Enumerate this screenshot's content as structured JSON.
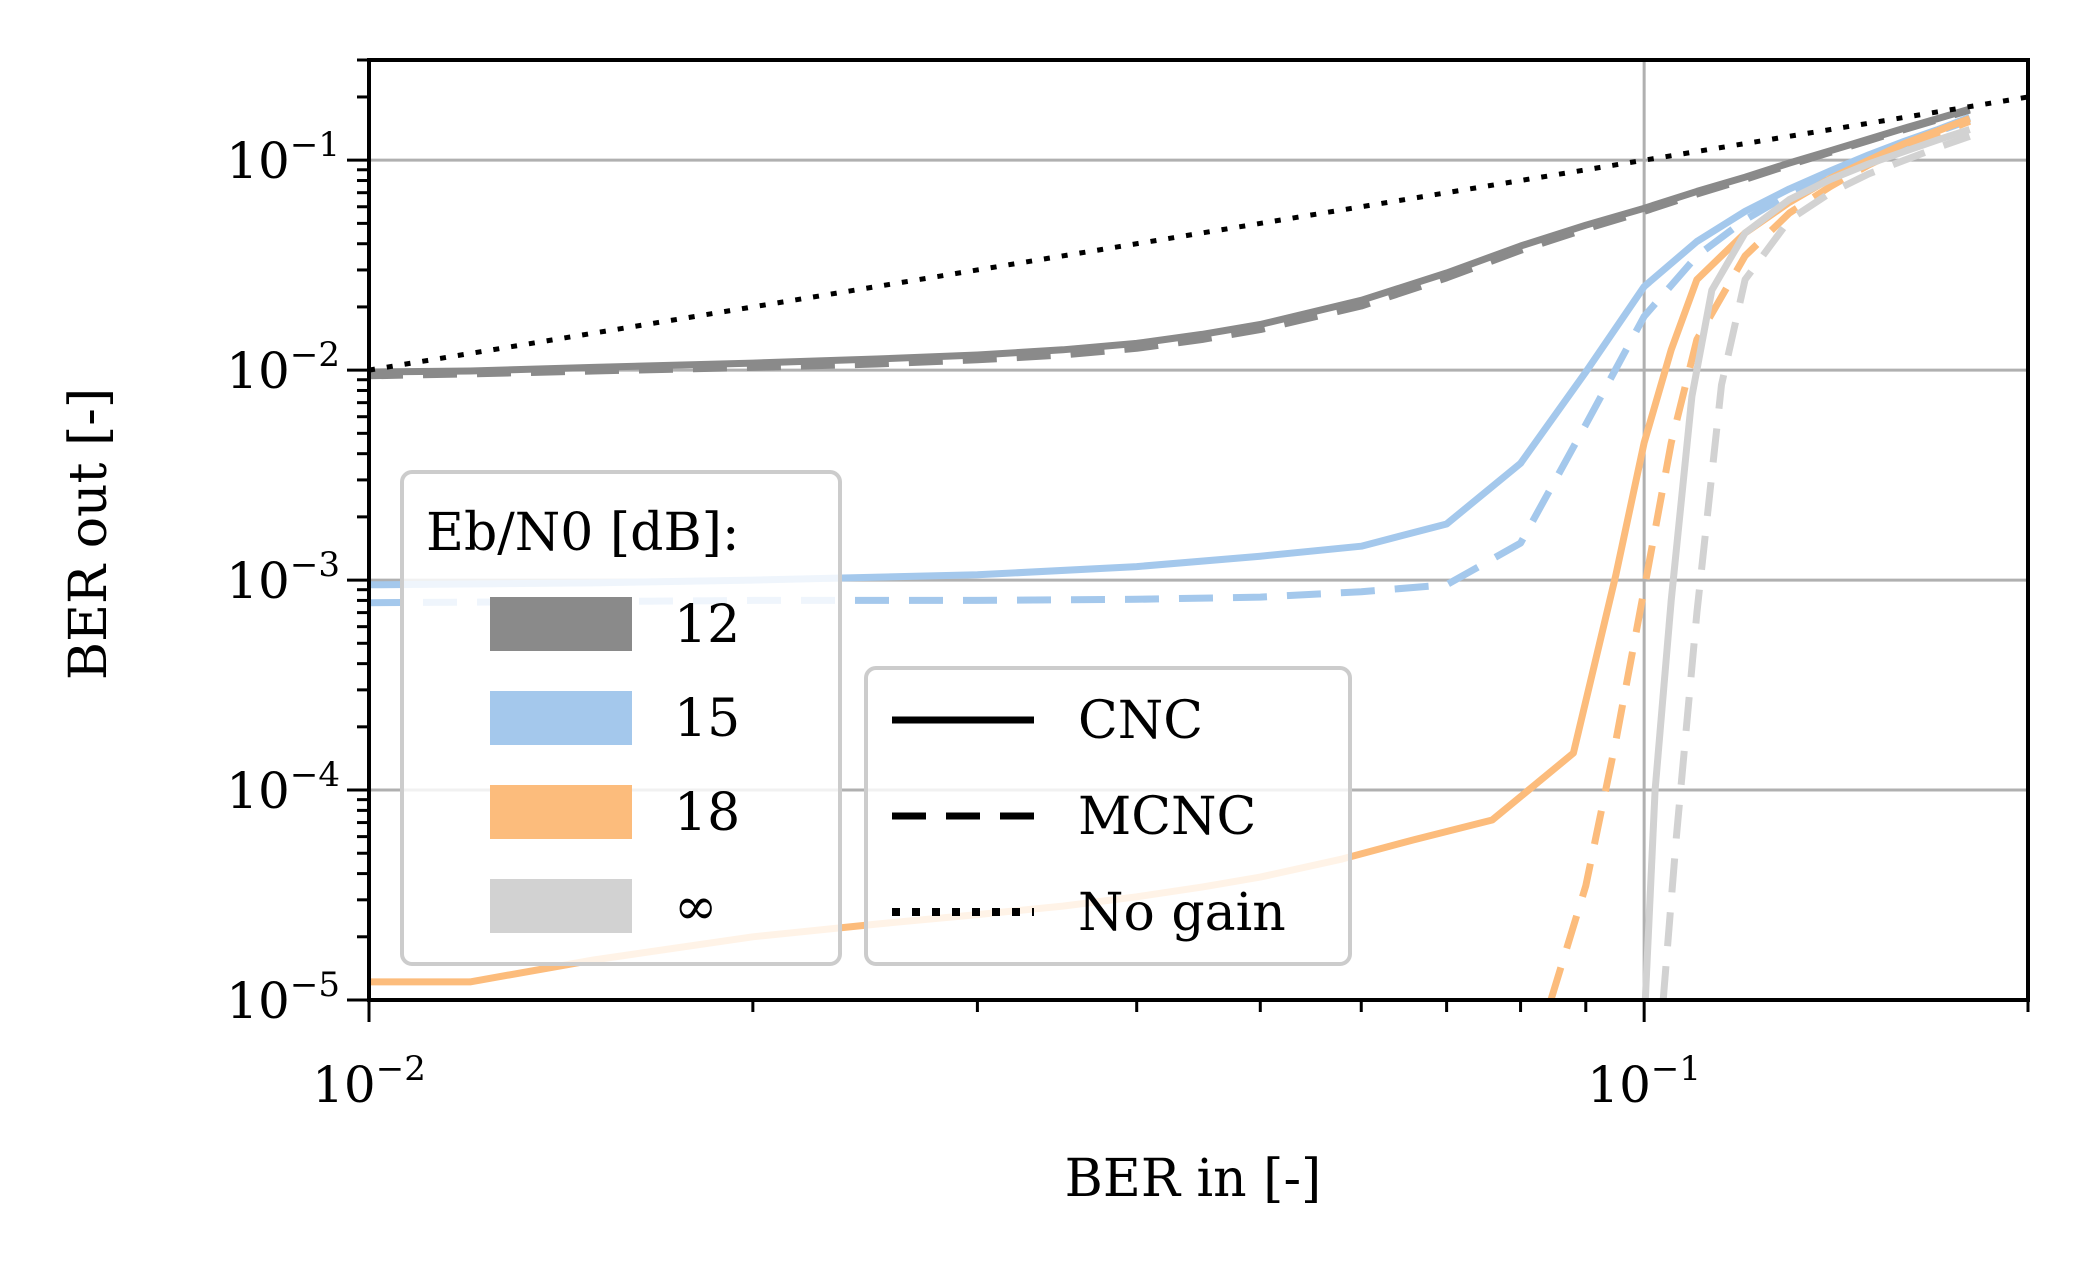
{
  "chart_data": {
    "type": "line",
    "xlabel": "BER in [-]",
    "ylabel": "BER out [-]",
    "xscale": "log",
    "yscale": "log",
    "xlim": [
      0.01,
      0.2
    ],
    "ylim": [
      1e-05,
      0.3
    ],
    "grid": true,
    "x_ticks": [
      {
        "value": 0.01,
        "base": "10",
        "exp": "−2"
      },
      {
        "value": 0.1,
        "base": "10",
        "exp": "−1"
      }
    ],
    "y_ticks": [
      {
        "value": 1e-05,
        "base": "10",
        "exp": "−5"
      },
      {
        "value": 0.0001,
        "base": "10",
        "exp": "−4"
      },
      {
        "value": 0.001,
        "base": "10",
        "exp": "−3"
      },
      {
        "value": 0.01,
        "base": "10",
        "exp": "−2"
      },
      {
        "value": 0.1,
        "base": "10",
        "exp": "−1"
      }
    ],
    "colors": {
      "12": "#8a8a8a",
      "15": "#a4c8ec",
      "18": "#fcbc7c",
      "inf": "#d2d2d2",
      "nogain": "#000000"
    },
    "series": [
      {
        "ebn0": "12",
        "code": "CNC",
        "style": "solid",
        "x": [
          0.01,
          0.012,
          0.015,
          0.02,
          0.025,
          0.03,
          0.035,
          0.04,
          0.045,
          0.05,
          0.06,
          0.07,
          0.08,
          0.09,
          0.1,
          0.11,
          0.12,
          0.13,
          0.14,
          0.15,
          0.16,
          0.17,
          0.18
        ],
        "y": [
          0.0098,
          0.0099,
          0.0103,
          0.0108,
          0.0113,
          0.0118,
          0.0125,
          0.0134,
          0.0148,
          0.0165,
          0.0215,
          0.029,
          0.039,
          0.049,
          0.059,
          0.071,
          0.083,
          0.097,
          0.111,
          0.126,
          0.142,
          0.158,
          0.175
        ]
      },
      {
        "ebn0": "12",
        "code": "MCNC",
        "style": "dashed",
        "x": [
          0.01,
          0.012,
          0.015,
          0.02,
          0.025,
          0.03,
          0.035,
          0.04,
          0.045,
          0.05,
          0.06,
          0.07,
          0.08,
          0.09,
          0.1,
          0.11,
          0.12,
          0.13,
          0.14,
          0.15,
          0.16,
          0.17,
          0.18
        ],
        "y": [
          0.0094,
          0.0096,
          0.0099,
          0.0103,
          0.0107,
          0.0112,
          0.0118,
          0.0127,
          0.014,
          0.0156,
          0.0202,
          0.0275,
          0.0372,
          0.047,
          0.057,
          0.069,
          0.081,
          0.095,
          0.109,
          0.124,
          0.14,
          0.156,
          0.173
        ]
      },
      {
        "ebn0": "15",
        "code": "CNC",
        "style": "solid",
        "x": [
          0.01,
          0.015,
          0.02,
          0.03,
          0.04,
          0.05,
          0.06,
          0.07,
          0.08,
          0.09,
          0.1,
          0.11,
          0.12,
          0.13,
          0.14,
          0.15,
          0.16,
          0.17,
          0.18
        ],
        "y": [
          0.00095,
          0.00097,
          0.001,
          0.00106,
          0.00116,
          0.0013,
          0.00145,
          0.00185,
          0.0036,
          0.0098,
          0.025,
          0.041,
          0.057,
          0.073,
          0.089,
          0.106,
          0.123,
          0.14,
          0.16
        ]
      },
      {
        "ebn0": "15",
        "code": "MCNC",
        "style": "dashed",
        "x": [
          0.01,
          0.015,
          0.02,
          0.03,
          0.04,
          0.05,
          0.06,
          0.07,
          0.08,
          0.09,
          0.1,
          0.11,
          0.12,
          0.13,
          0.14,
          0.15,
          0.16,
          0.17,
          0.18
        ],
        "y": [
          0.00078,
          0.00079,
          0.0008,
          0.0008,
          0.00081,
          0.00083,
          0.00088,
          0.00095,
          0.0015,
          0.0055,
          0.018,
          0.035,
          0.052,
          0.069,
          0.085,
          0.102,
          0.119,
          0.137,
          0.155
        ]
      },
      {
        "ebn0": "18",
        "code": "CNC",
        "style": "solid",
        "x": [
          0.01,
          0.0105,
          0.012,
          0.015,
          0.02,
          0.025,
          0.03,
          0.035,
          0.04,
          0.045,
          0.05,
          0.058,
          0.066,
          0.076,
          0.088,
          0.095,
          0.1,
          0.105,
          0.11,
          0.12,
          0.13,
          0.14,
          0.15,
          0.16,
          0.17,
          0.18
        ],
        "y": [
          1.22e-05,
          1.22e-05,
          1.22e-05,
          1.55e-05,
          2e-05,
          2.3e-05,
          2.55e-05,
          2.8e-05,
          3.1e-05,
          3.45e-05,
          3.85e-05,
          4.7e-05,
          5.8e-05,
          7.2e-05,
          0.00015,
          0.00105,
          0.0045,
          0.0125,
          0.027,
          0.045,
          0.063,
          0.082,
          0.1,
          0.12,
          0.138,
          0.158
        ]
      },
      {
        "ebn0": "18",
        "code": "MCNC",
        "style": "dashed",
        "x": [
          0.0845,
          0.09,
          0.095,
          0.1,
          0.105,
          0.11,
          0.12,
          0.13,
          0.14,
          0.15,
          0.16,
          0.17,
          0.18
        ],
        "y": [
          1e-05,
          3.5e-05,
          0.00017,
          0.0009,
          0.0045,
          0.014,
          0.035,
          0.056,
          0.075,
          0.095,
          0.114,
          0.134,
          0.153
        ]
      },
      {
        "ebn0": "inf",
        "code": "CNC",
        "style": "solid",
        "x": [
          0.1002,
          0.102,
          0.105,
          0.109,
          0.113,
          0.12,
          0.13,
          0.14,
          0.15,
          0.16,
          0.17,
          0.18
        ],
        "y": [
          1e-05,
          0.0001,
          0.0008,
          0.0075,
          0.024,
          0.045,
          0.065,
          0.081,
          0.096,
          0.11,
          0.125,
          0.14
        ]
      },
      {
        "ebn0": "inf",
        "code": "MCNC",
        "style": "dashed",
        "x": [
          0.1035,
          0.106,
          0.11,
          0.115,
          0.12,
          0.13,
          0.14,
          0.15,
          0.16,
          0.17,
          0.18
        ],
        "y": [
          1e-05,
          6e-05,
          0.0007,
          0.0085,
          0.027,
          0.052,
          0.07,
          0.086,
          0.1,
          0.115,
          0.13
        ]
      },
      {
        "ebn0": "none",
        "code": "No gain",
        "style": "dotted",
        "x": [
          0.01,
          0.2
        ],
        "y": [
          0.01,
          0.2
        ]
      }
    ],
    "legend_ebn0": {
      "title": "Eb/N0 [dB]:",
      "items": [
        {
          "key": "12",
          "label": "12"
        },
        {
          "key": "15",
          "label": "15"
        },
        {
          "key": "18",
          "label": "18"
        },
        {
          "key": "inf",
          "label": "∞"
        }
      ]
    },
    "legend_style": {
      "items": [
        {
          "style": "solid",
          "label": "CNC"
        },
        {
          "style": "dashed",
          "label": "MCNC"
        },
        {
          "style": "dotted",
          "label": "No gain"
        }
      ]
    }
  }
}
